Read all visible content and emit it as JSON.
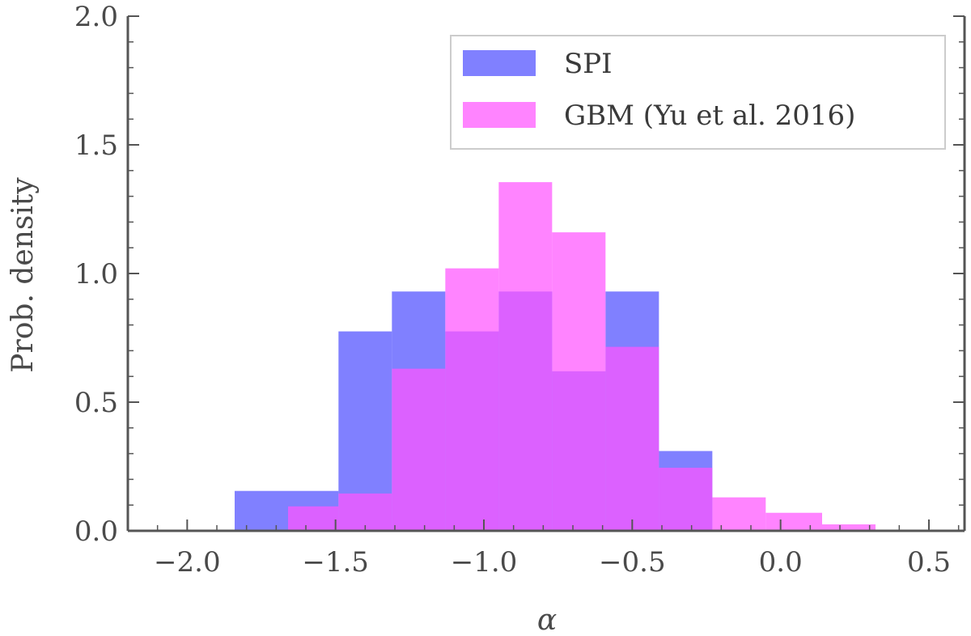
{
  "chart_data": {
    "type": "bar",
    "subtype": "histogram",
    "title": "",
    "xlabel": "α",
    "ylabel": "Prob. density",
    "xlim": [
      -2.2,
      0.62
    ],
    "ylim": [
      0,
      2.0
    ],
    "xticks": [
      -2.0,
      -1.5,
      -1.0,
      -0.5,
      0.0,
      0.5
    ],
    "xtick_labels": [
      "−2.0",
      "−1.5",
      "−1.0",
      "−0.5",
      "0.0",
      "0.5"
    ],
    "yticks": [
      0.0,
      0.5,
      1.0,
      1.5,
      2.0
    ],
    "ytick_labels": [
      "0.0",
      "0.5",
      "1.0",
      "1.5",
      "2.0"
    ],
    "grid": false,
    "legend_position": "top-right",
    "series": [
      {
        "name": "SPI",
        "color": "#5555ff",
        "opacity": 0.75,
        "bin_edges": [
          -1.84,
          -1.66,
          -1.49,
          -1.31,
          -1.13,
          -0.95,
          -0.77,
          -0.59,
          -0.41,
          -0.23
        ],
        "values": [
          0.155,
          0.155,
          0.775,
          0.93,
          0.775,
          0.93,
          0.62,
          0.93,
          0.31
        ]
      },
      {
        "name": "GBM (Yu et al. 2016)",
        "color": "#ff55ff",
        "opacity": 0.72,
        "bin_edges": [
          -1.66,
          -1.49,
          -1.31,
          -1.13,
          -0.95,
          -0.77,
          -0.59,
          -0.41,
          -0.23,
          -0.05,
          0.14,
          0.32
        ],
        "values": [
          0.095,
          0.145,
          0.63,
          1.02,
          1.355,
          1.16,
          0.715,
          0.245,
          0.13,
          0.07,
          0.025
        ]
      }
    ]
  }
}
